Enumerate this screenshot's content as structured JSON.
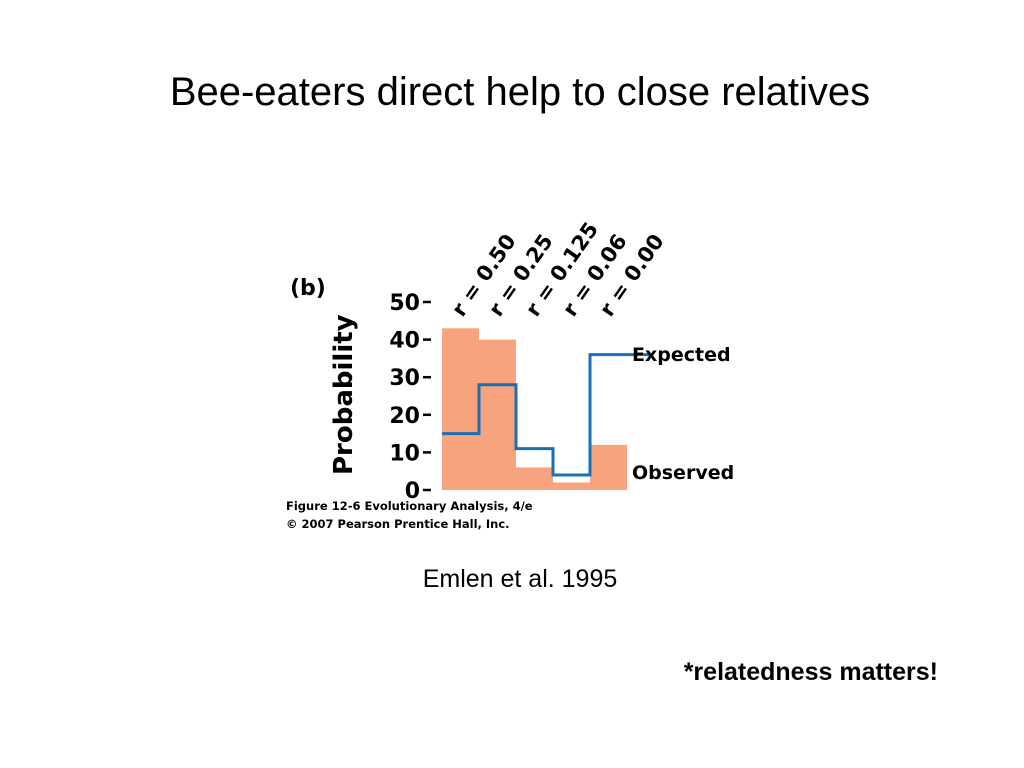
{
  "slide": {
    "title": "Bee-eaters direct help to close relatives",
    "citation": "Emlen et al. 1995",
    "takeaway": "*relatedness matters!"
  },
  "chart_data": {
    "type": "bar",
    "panel_label": "(b)",
    "ylabel": "Probability",
    "xlabel": "",
    "ylim": [
      0,
      50
    ],
    "yticks": [
      "0",
      "10",
      "20",
      "30",
      "40",
      "50"
    ],
    "categories": [
      "r = 0.50",
      "r = 0.25",
      "r = 0.125",
      "r = 0.06",
      "r = 0.00"
    ],
    "series": [
      {
        "name": "Observed",
        "display": "bar",
        "color": "#f7a47e",
        "values": [
          43,
          40,
          6,
          2,
          12
        ]
      },
      {
        "name": "Expected",
        "display": "step-line",
        "color": "#1a6fb5",
        "values": [
          15,
          28,
          11,
          4,
          36
        ]
      }
    ],
    "caption": {
      "line1": "Figure 12-6  Evolutionary Analysis, 4/e",
      "line2": "© 2007 Pearson Prentice Hall, Inc."
    }
  }
}
